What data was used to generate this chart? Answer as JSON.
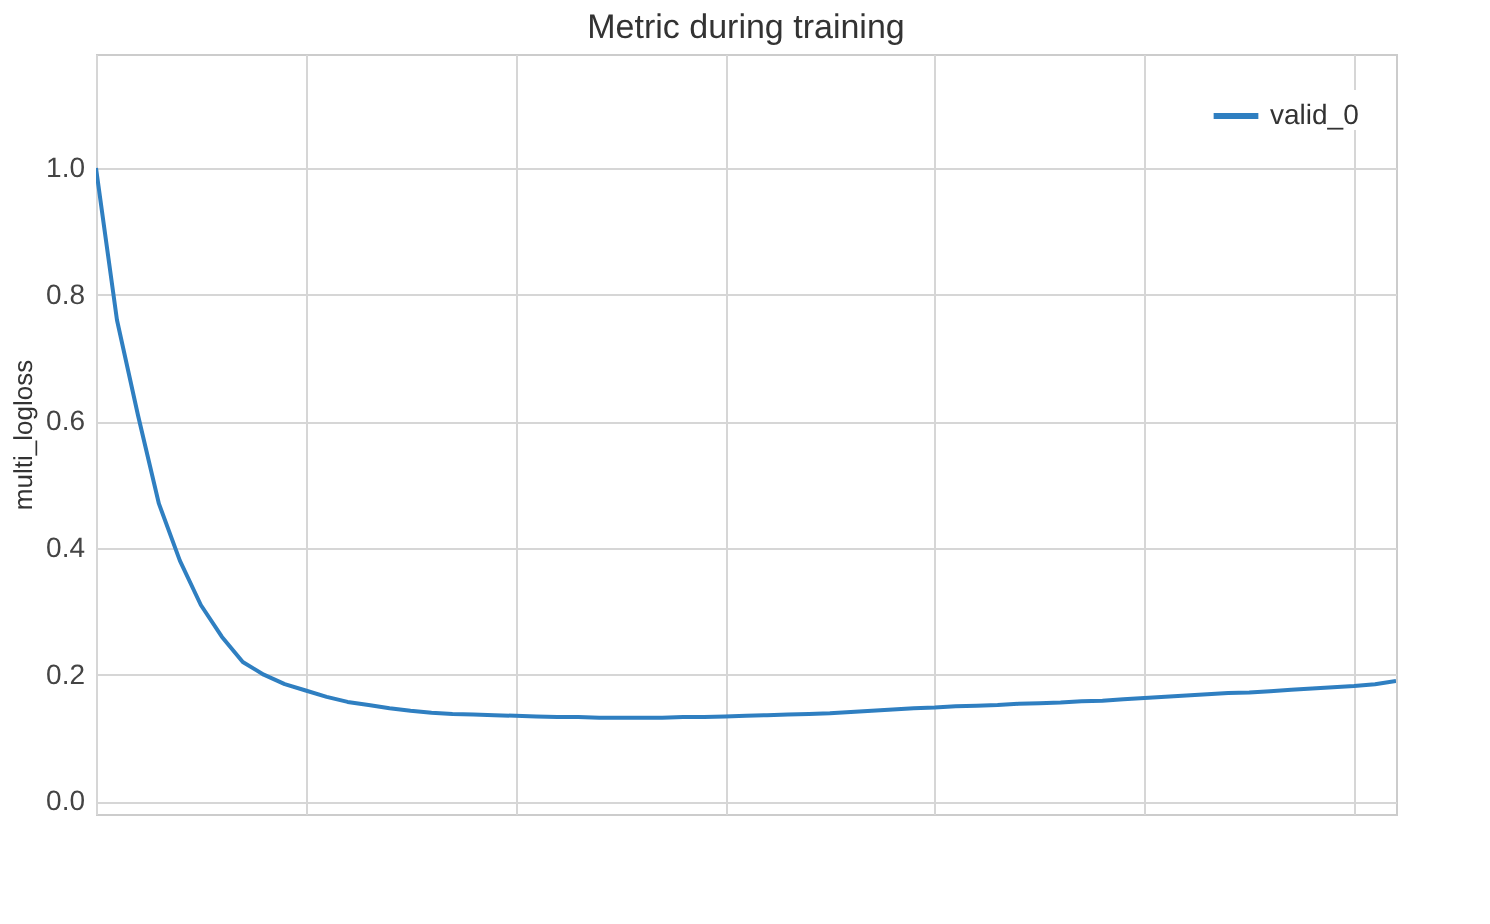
{
  "chart_data": {
    "type": "line",
    "title": "Metric during training",
    "ylabel": "multi_logloss",
    "categories": [
      null,
      null,
      null,
      null,
      null,
      null,
      null,
      null,
      null,
      null,
      null,
      null,
      null,
      null,
      null,
      null,
      null,
      null,
      null,
      null,
      null,
      null,
      null,
      null,
      null,
      null,
      null,
      null,
      null,
      null,
      null,
      null,
      null,
      null,
      null,
      null,
      null,
      null,
      null,
      null,
      null,
      null,
      null,
      null,
      null,
      null,
      null,
      null,
      null,
      null,
      null,
      null,
      null,
      null,
      null,
      null,
      null,
      null,
      null,
      null,
      null,
      null,
      null
    ],
    "series": [
      {
        "name": "valid_0",
        "color": "#2f7fc1",
        "values": [
          1.0,
          0.76,
          0.61,
          0.47,
          0.38,
          0.31,
          0.26,
          0.22,
          0.2,
          0.185,
          0.175,
          0.165,
          0.157,
          0.152,
          0.147,
          0.143,
          0.14,
          0.138,
          0.137,
          0.136,
          0.135,
          0.134,
          0.133,
          0.133,
          0.132,
          0.132,
          0.132,
          0.132,
          0.133,
          0.133,
          0.134,
          0.135,
          0.136,
          0.137,
          0.138,
          0.139,
          0.141,
          0.143,
          0.145,
          0.147,
          0.148,
          0.15,
          0.151,
          0.152,
          0.154,
          0.155,
          0.156,
          0.158,
          0.159,
          0.161,
          0.163,
          0.165,
          0.167,
          0.169,
          0.171,
          0.172,
          0.174,
          0.176,
          0.178,
          0.18,
          0.182,
          0.185,
          0.19
        ]
      }
    ],
    "ylim": [
      -0.02,
      1.18
    ],
    "yticks": [
      {
        "value": 0,
        "label": "0.0"
      },
      {
        "value": 0.2,
        "label": "0.2"
      },
      {
        "value": 0.4,
        "label": "0.4"
      },
      {
        "value": 0.6,
        "label": "0.6"
      },
      {
        "value": 0.8,
        "label": "0.8"
      },
      {
        "value": 1,
        "label": "1.0"
      }
    ],
    "tick_labels": "y",
    "grid": true,
    "legend": "top right"
  }
}
